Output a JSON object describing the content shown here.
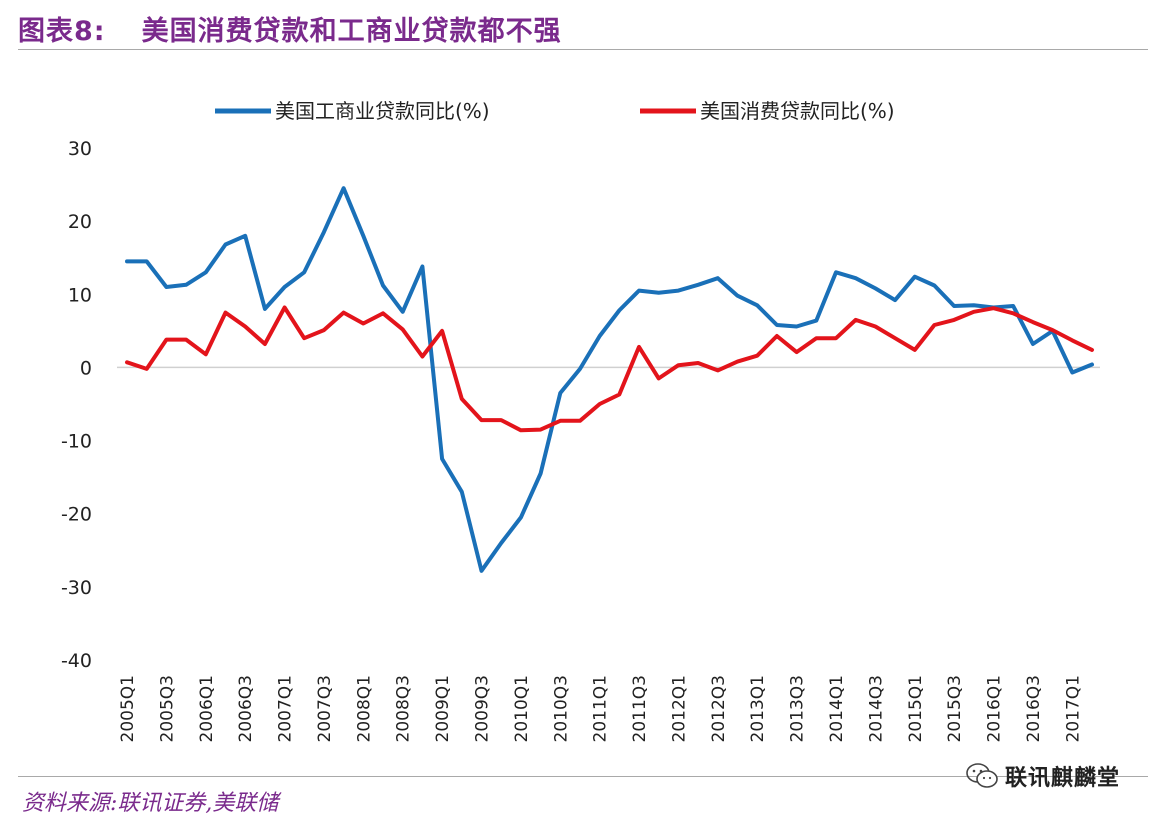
{
  "header": {
    "figure_label": "图表8:",
    "title": "美国消费贷款和工商业贷款都不强"
  },
  "footer": {
    "source": "资料来源:联讯证券,美联储",
    "watermark": "联讯麒麟堂",
    "watermark_icon": "wechat-icon"
  },
  "chart_data": {
    "type": "line",
    "title": "美国消费贷款和工商业贷款都不强",
    "xlabel": "",
    "ylabel": "",
    "ylim": [
      -40,
      30
    ],
    "yticks": [
      30,
      20,
      10,
      0,
      -10,
      -20,
      -30,
      -40
    ],
    "grid": false,
    "zero_line": true,
    "legend_position": "top",
    "x_tick_labels": [
      "2005Q1",
      "2005Q3",
      "2006Q1",
      "2006Q3",
      "2007Q1",
      "2007Q3",
      "2008Q1",
      "2008Q3",
      "2009Q1",
      "2009Q3",
      "2010Q1",
      "2010Q3",
      "2011Q1",
      "2011Q3",
      "2012Q1",
      "2012Q3",
      "2013Q1",
      "2013Q3",
      "2014Q1",
      "2014Q3",
      "2015Q1",
      "2015Q3",
      "2016Q1",
      "2016Q3",
      "2017Q1"
    ],
    "x": [
      "2005Q1",
      "2005Q2",
      "2005Q3",
      "2005Q4",
      "2006Q1",
      "2006Q2",
      "2006Q3",
      "2006Q4",
      "2007Q1",
      "2007Q2",
      "2007Q3",
      "2007Q4",
      "2008Q1",
      "2008Q2",
      "2008Q3",
      "2008Q4",
      "2009Q1",
      "2009Q2",
      "2009Q3",
      "2009Q4",
      "2010Q1",
      "2010Q2",
      "2010Q3",
      "2010Q4",
      "2011Q1",
      "2011Q2",
      "2011Q3",
      "2011Q4",
      "2012Q1",
      "2012Q2",
      "2012Q3",
      "2012Q4",
      "2013Q1",
      "2013Q2",
      "2013Q3",
      "2013Q4",
      "2014Q1",
      "2014Q2",
      "2014Q3",
      "2014Q4",
      "2015Q1",
      "2015Q2",
      "2015Q3",
      "2015Q4",
      "2016Q1",
      "2016Q2",
      "2016Q3",
      "2016Q4",
      "2017Q1",
      "2017Q2"
    ],
    "series": [
      {
        "name": "美国工商业贷款同比(%)",
        "color": "#1a70b8",
        "values": [
          14.5,
          14.5,
          11.0,
          11.3,
          13.0,
          16.8,
          18.0,
          8.0,
          11.0,
          13.0,
          18.5,
          24.5,
          18.0,
          11.2,
          7.6,
          13.8,
          -12.5,
          -17.0,
          -27.8,
          -24.0,
          -20.5,
          -14.5,
          -3.5,
          -0.2,
          4.3,
          7.8,
          10.5,
          10.2,
          10.5,
          11.3,
          12.2,
          9.8,
          8.5,
          5.8,
          5.6,
          6.4,
          13.0,
          12.2,
          10.8,
          9.2,
          12.4,
          11.2,
          8.4,
          8.5,
          8.2,
          8.4,
          3.2,
          5.0,
          -0.7,
          0.4
        ]
      },
      {
        "name": "美国消费贷款同比(%)",
        "color": "#e3141b",
        "values": [
          0.7,
          -0.2,
          3.8,
          3.8,
          1.8,
          7.5,
          5.6,
          3.2,
          8.2,
          4.0,
          5.1,
          7.5,
          6.0,
          7.4,
          5.2,
          1.5,
          5.0,
          -4.3,
          -7.2,
          -7.2,
          -8.6,
          -8.5,
          -7.3,
          -7.3,
          -5.0,
          -3.7,
          2.8,
          -1.5,
          0.3,
          0.6,
          -0.4,
          0.8,
          1.6,
          4.3,
          2.1,
          4.0,
          4.0,
          6.5,
          5.6,
          4.0,
          2.4,
          5.8,
          6.5,
          7.6,
          8.1,
          7.4,
          6.2,
          5.1,
          3.7,
          2.4
        ]
      }
    ]
  }
}
